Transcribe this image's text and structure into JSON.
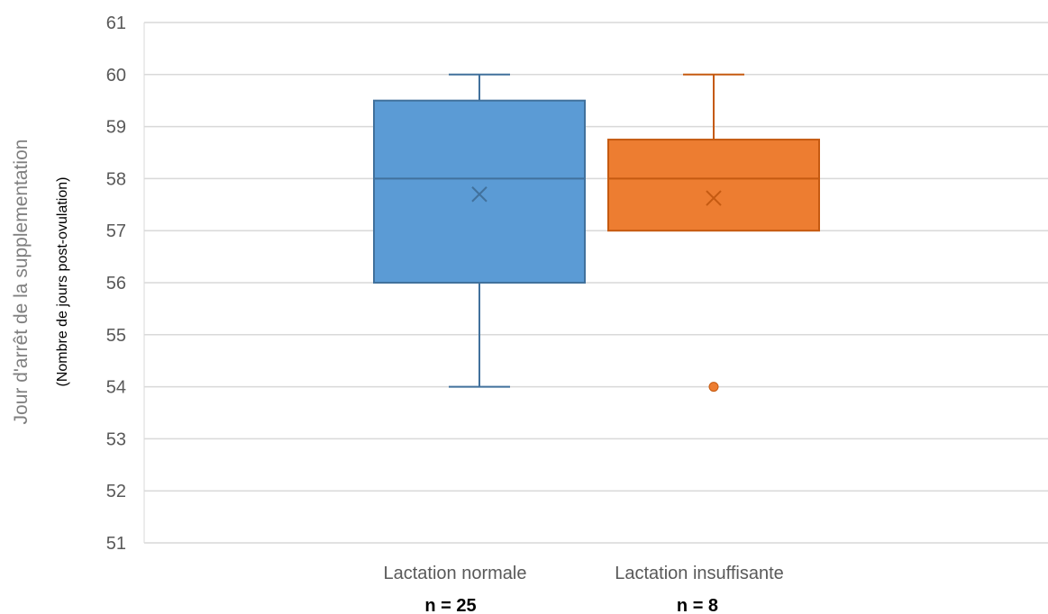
{
  "chart_data": {
    "type": "box",
    "ylabel": "Jour d'arrêt de la supplementation",
    "ylabel_sub": "(Nombre de jours post-ovulation)",
    "ylim": [
      51,
      61
    ],
    "yticks": [
      "51",
      "52",
      "53",
      "54",
      "55",
      "56",
      "57",
      "58",
      "59",
      "60",
      "61"
    ],
    "grid": true,
    "series": [
      {
        "category": "Lactation normale",
        "n_label": "n = 25",
        "color": "#5b9bd5",
        "stroke": "#41719c",
        "min": 54,
        "q1": 56,
        "median": 58,
        "q3": 59.5,
        "max": 60,
        "mean": 57.7,
        "outliers": []
      },
      {
        "category": "Lactation insuffisante",
        "n_label": "n = 8",
        "color": "#ed7d31",
        "stroke": "#c55a11",
        "min": 57,
        "q1": 57,
        "median": 58,
        "q3": 58.75,
        "max": 60,
        "mean": 57.625,
        "outliers": [
          54
        ]
      }
    ]
  }
}
